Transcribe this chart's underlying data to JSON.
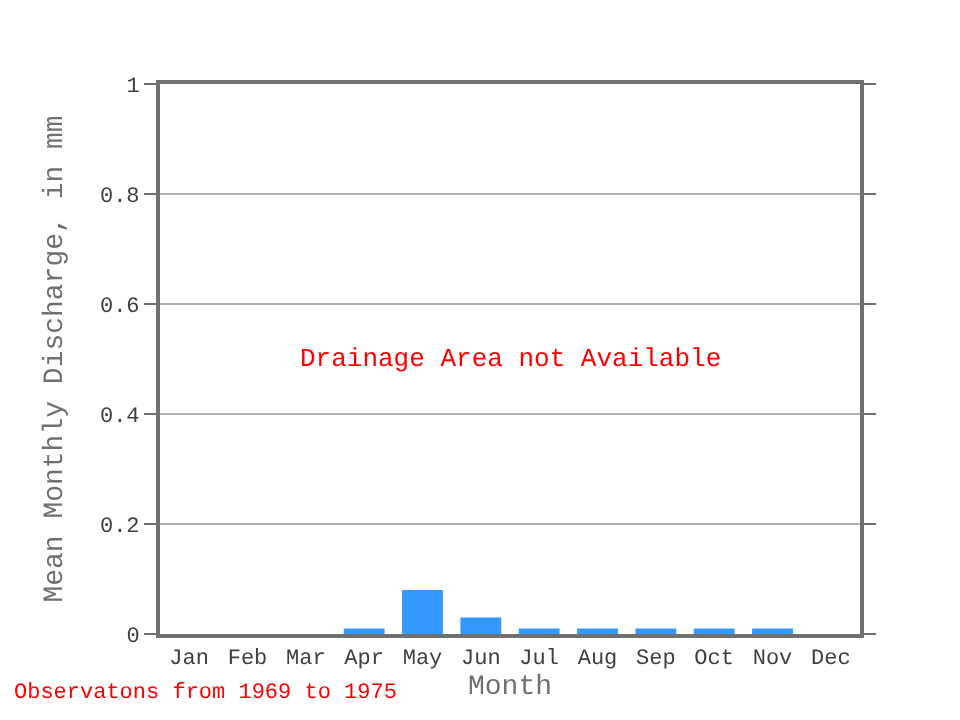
{
  "chart_data": {
    "type": "bar",
    "xlabel": "Month",
    "ylabel": "Mean Monthly Discharge, in mm",
    "categories": [
      "Jan",
      "Feb",
      "Mar",
      "Apr",
      "May",
      "Jun",
      "Jul",
      "Aug",
      "Sep",
      "Oct",
      "Nov",
      "Dec"
    ],
    "values": [
      0,
      0,
      0,
      0.01,
      0.08,
      0.03,
      0.01,
      0.01,
      0.01,
      0.01,
      0.01,
      0
    ],
    "color": "#3399ff",
    "ylim": [
      0,
      1
    ],
    "yticks": [
      0,
      0.2,
      0.4,
      0.6,
      0.8,
      1
    ],
    "grid": "y",
    "annotations": [
      "Drainage Area not Available",
      "Observatons from 1969 to 1975"
    ]
  }
}
